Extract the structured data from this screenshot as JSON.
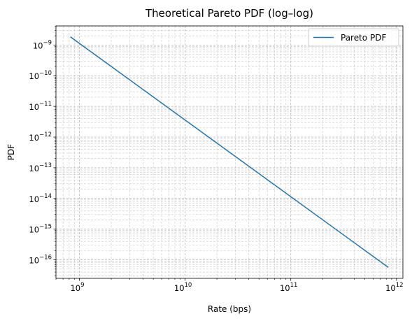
{
  "chart_data": {
    "type": "line",
    "title": "Theoretical Pareto PDF (log–log)",
    "xlabel": "Rate (bps)",
    "ylabel": "PDF",
    "xscale": "log",
    "yscale": "log",
    "xlim": [
      600000000.0,
      1150000000000.0
    ],
    "ylim": [
      2.5e-17,
      4.2e-09
    ],
    "grid": true,
    "grid_style": "dashed, major and minor",
    "legend_position": "top-right",
    "x_ticks": [
      {
        "label": "10",
        "exp": "9",
        "value": 1000000000.0
      },
      {
        "label": "10",
        "exp": "10",
        "value": 10000000000.0
      },
      {
        "label": "10",
        "exp": "11",
        "value": 100000000000.0
      },
      {
        "label": "10",
        "exp": "12",
        "value": 1000000000000.0
      }
    ],
    "y_ticks": [
      {
        "label": "10",
        "exp": "−16",
        "value": 1e-16
      },
      {
        "label": "10",
        "exp": "−15",
        "value": 1e-15
      },
      {
        "label": "10",
        "exp": "−14",
        "value": 1e-14
      },
      {
        "label": "10",
        "exp": "−13",
        "value": 1e-13
      },
      {
        "label": "10",
        "exp": "−12",
        "value": 1e-12
      },
      {
        "label": "10",
        "exp": "−11",
        "value": 1e-11
      },
      {
        "label": "10",
        "exp": "−10",
        "value": 1e-10
      },
      {
        "label": "10",
        "exp": "−9",
        "value": 1e-09
      }
    ],
    "series": [
      {
        "name": "Pareto PDF",
        "color": "#1f77b4",
        "x": [
          830000000.0,
          830000000000.0
        ],
        "y": [
          1.8e-09,
          5.8e-17
        ]
      }
    ]
  }
}
